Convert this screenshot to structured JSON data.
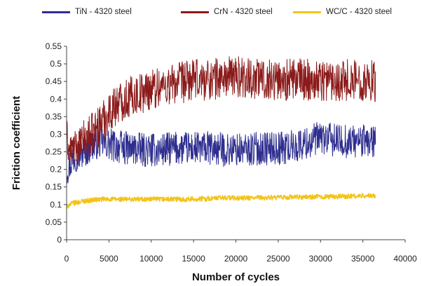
{
  "chart_data": {
    "type": "line",
    "title": "",
    "xlabel": "Number of cycles",
    "ylabel": "Friction coefficient",
    "xlim": [
      0,
      40000
    ],
    "ylim": [
      0,
      0.55
    ],
    "x_ticks": [
      "0",
      "5000",
      "10000",
      "15000",
      "20000",
      "25000",
      "30000",
      "35000",
      "40000"
    ],
    "y_ticks": [
      "0",
      "0.05",
      "0.1",
      "0.15",
      "0.2",
      "0.25",
      "0.3",
      "0.35",
      "0.4",
      "0.45",
      "0.5",
      "0.55"
    ],
    "grid": false,
    "legend_position": "top",
    "series": [
      {
        "name": "TiN - 4320 steel",
        "color": "#2e2e8f",
        "x": [
          0,
          500,
          1000,
          2000,
          3000,
          4000,
          5000,
          7000,
          9000,
          11000,
          13000,
          15000,
          17000,
          19000,
          21000,
          23000,
          25000,
          27000,
          29000,
          30000,
          32000,
          34000,
          36500
        ],
        "y": [
          0.2,
          0.22,
          0.24,
          0.25,
          0.27,
          0.28,
          0.27,
          0.26,
          0.255,
          0.255,
          0.26,
          0.26,
          0.26,
          0.255,
          0.255,
          0.26,
          0.26,
          0.265,
          0.28,
          0.29,
          0.28,
          0.28,
          0.28
        ]
      },
      {
        "name": "CrN - 4320 steel",
        "color": "#8b1a1a",
        "x": [
          0,
          300,
          1000,
          2000,
          3000,
          4000,
          5000,
          6000,
          7000,
          8000,
          9000,
          10000,
          12000,
          14000,
          16000,
          18000,
          20000,
          22000,
          25000,
          28000,
          30000,
          33000,
          36500
        ],
        "y": [
          0.3,
          0.25,
          0.26,
          0.28,
          0.3,
          0.33,
          0.36,
          0.39,
          0.4,
          0.41,
          0.42,
          0.43,
          0.44,
          0.45,
          0.455,
          0.46,
          0.465,
          0.46,
          0.455,
          0.455,
          0.455,
          0.455,
          0.45
        ]
      },
      {
        "name": "WC/C - 4320 steel",
        "color": "#f2c419",
        "x": [
          0,
          300,
          1000,
          2000,
          4000,
          6000,
          10000,
          14000,
          17000,
          19000,
          20000,
          25000,
          30000,
          36500
        ],
        "y": [
          0.09,
          0.1,
          0.105,
          0.11,
          0.115,
          0.115,
          0.115,
          0.115,
          0.117,
          0.12,
          0.118,
          0.12,
          0.122,
          0.125
        ]
      }
    ]
  }
}
